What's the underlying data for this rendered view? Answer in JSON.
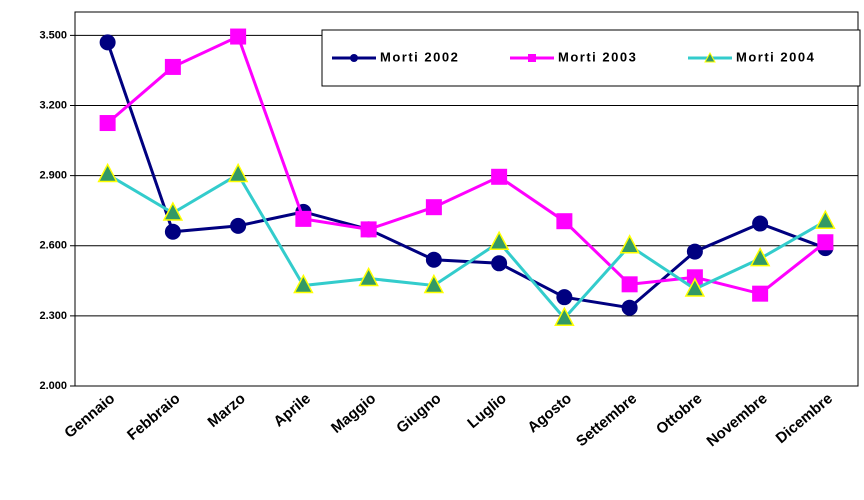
{
  "chart_data": {
    "type": "line",
    "categories": [
      "Gennaio",
      "Febbraio",
      "Marzo",
      "Aprile",
      "Maggio",
      "Giugno",
      "Luglio",
      "Agosto",
      "Settembre",
      "Ottobre",
      "Novembre",
      "Dicembre"
    ],
    "series": [
      {
        "name": "Morti 2002",
        "color": "#000080",
        "marker": "circle",
        "values": [
          3470,
          2660,
          2685,
          2745,
          2670,
          2540,
          2525,
          2380,
          2335,
          2575,
          2695,
          2590
        ]
      },
      {
        "name": "Morti 2003",
        "color": "#ff00ff",
        "marker": "square",
        "values": [
          3125,
          3365,
          3495,
          2715,
          2670,
          2765,
          2895,
          2705,
          2435,
          2465,
          2395,
          2615
        ]
      },
      {
        "name": "Morti 2004",
        "color": "#33cccc",
        "marker": "triangle",
        "values": [
          2905,
          2740,
          2905,
          2430,
          2460,
          2430,
          2615,
          2290,
          2600,
          2415,
          2545,
          2705
        ]
      }
    ],
    "ylim": [
      2000,
      3600
    ],
    "yticks": [
      {
        "value": 2000,
        "label": "2.000"
      },
      {
        "value": 2300,
        "label": "2.300"
      },
      {
        "value": 2600,
        "label": "2.600"
      },
      {
        "value": 2900,
        "label": "2.900"
      },
      {
        "value": 3200,
        "label": "3.200"
      },
      {
        "value": 3500,
        "label": "3.500"
      }
    ],
    "grid": true,
    "legend": "top-right"
  }
}
